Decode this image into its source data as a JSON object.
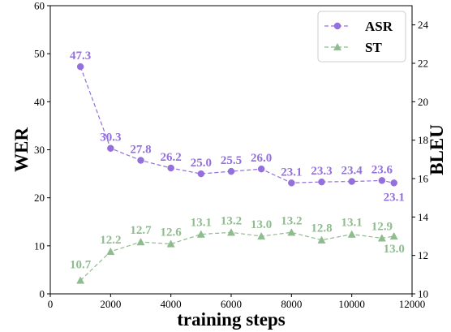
{
  "chart_data": {
    "type": "line",
    "xlabel": "training steps",
    "ylabel_left": "WER",
    "ylabel_right": "BLEU",
    "xlim": [
      0,
      12000
    ],
    "xticks": [
      "0",
      "2000",
      "4000",
      "6000",
      "8000",
      "10000",
      "12000"
    ],
    "ylim_left": [
      0,
      60
    ],
    "yticks_left": [
      "0",
      "10",
      "20",
      "30",
      "40",
      "50",
      "60"
    ],
    "ylim_right": [
      10,
      25
    ],
    "yticks_right": [
      "10",
      "12",
      "14",
      "16",
      "18",
      "20",
      "22",
      "24"
    ],
    "legend_position": "top-right",
    "grid": false,
    "x": [
      1000,
      2000,
      3000,
      4000,
      5000,
      6000,
      7000,
      8000,
      9000,
      10000,
      11000,
      11400
    ],
    "series": [
      {
        "name": "ASR",
        "axis": "left",
        "color": "#9370DB",
        "marker": "circle",
        "values": [
          47.3,
          30.3,
          27.8,
          26.2,
          25.0,
          25.5,
          26.0,
          23.1,
          23.3,
          23.4,
          23.6,
          23.1
        ],
        "labels": [
          "47.3",
          "30.3",
          "27.8",
          "26.2",
          "25.0",
          "25.5",
          "26.0",
          "23.1",
          "23.3",
          "23.4",
          "23.6",
          "23.1"
        ]
      },
      {
        "name": "ST",
        "axis": "right",
        "color": "#8FBC8F",
        "marker": "triangle",
        "values": [
          10.7,
          12.2,
          12.7,
          12.6,
          13.1,
          13.2,
          13.0,
          13.2,
          12.8,
          13.1,
          12.9,
          13.0
        ],
        "labels": [
          "10.7",
          "12.2",
          "12.7",
          "12.6",
          "13.1",
          "13.2",
          "13.0",
          "13.2",
          "12.8",
          "13.1",
          "12.9",
          "13.0"
        ]
      }
    ]
  }
}
